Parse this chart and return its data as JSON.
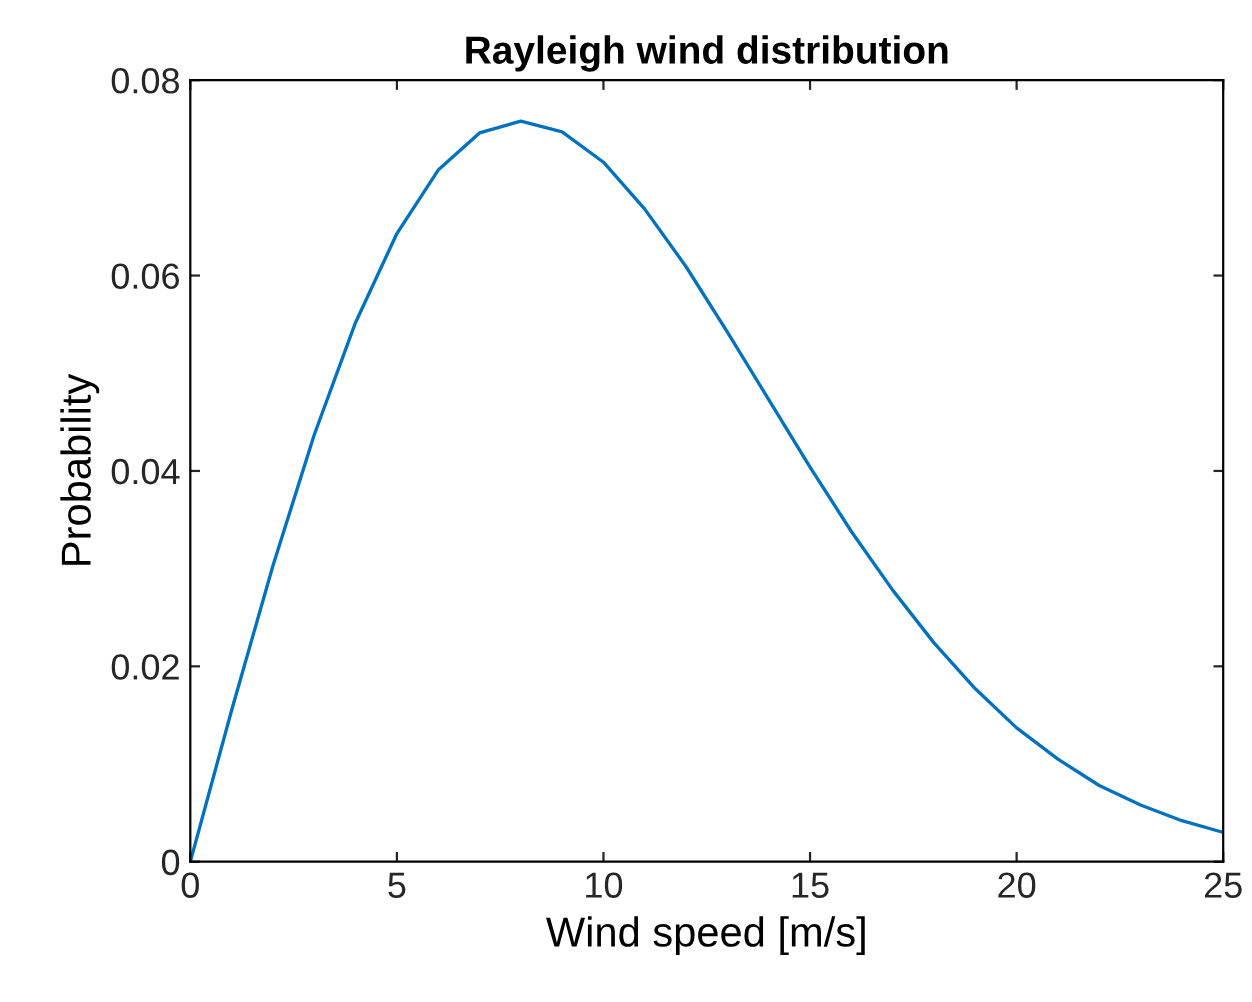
{
  "chart_data": {
    "type": "line",
    "title": "Rayleigh wind distribution",
    "xlabel": "Wind speed [m/s]",
    "ylabel": "Probability",
    "x": [
      0,
      1,
      2,
      3,
      4,
      5,
      6,
      7,
      8,
      9,
      10,
      11,
      12,
      13,
      14,
      15,
      16,
      17,
      18,
      19,
      20,
      21,
      22,
      23,
      24,
      25
    ],
    "series": [
      {
        "color": "#0072bd",
        "values": [
          0,
          0.0155,
          0.0303,
          0.0437,
          0.0552,
          0.0643,
          0.0708,
          0.0746,
          0.0758,
          0.0747,
          0.0716,
          0.0668,
          0.0609,
          0.0542,
          0.0473,
          0.0404,
          0.0338,
          0.0278,
          0.0224,
          0.0177,
          0.0137,
          0.0105,
          0.0078,
          0.0058,
          0.0042,
          0.003
        ]
      }
    ],
    "xlim": [
      0,
      25
    ],
    "ylim": [
      0,
      0.08
    ],
    "xticks": [
      0,
      5,
      10,
      15,
      20,
      25
    ],
    "yticks": [
      0,
      0.02,
      0.04,
      0.06,
      0.08
    ],
    "grid": false,
    "marker": "none",
    "line_style": "solid"
  }
}
